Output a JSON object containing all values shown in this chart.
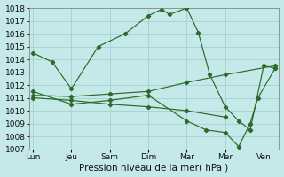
{
  "background_color": "#c5e8e8",
  "grid_color": "#a8d4d4",
  "line_color": "#2a6a2a",
  "xlabel": "Pression niveau de la mer( hPa )",
  "ylim": [
    1007,
    1018
  ],
  "xlim": [
    -0.1,
    6.4
  ],
  "xtick_labels": [
    "Lun",
    "Jeu",
    "Sam",
    "Dim",
    "Mar",
    "Mer",
    "Ven"
  ],
  "xtick_positions": [
    0,
    1,
    2,
    3,
    4,
    5,
    6
  ],
  "series": [
    {
      "x": [
        0,
        0.5,
        1.0,
        1.7,
        2.4,
        3.0,
        3.35,
        3.55,
        4.0,
        4.3,
        4.6,
        5.0,
        5.35,
        5.65,
        6.0,
        6.3
      ],
      "y": [
        1014.5,
        1013.8,
        1011.7,
        1015.0,
        1016.0,
        1017.4,
        1017.9,
        1017.5,
        1018.0,
        1016.1,
        1012.8,
        1010.3,
        1009.2,
        1008.5,
        1013.5,
        1013.3
      ]
    },
    {
      "x": [
        0,
        1,
        2,
        3,
        4,
        5,
        6.3
      ],
      "y": [
        1011.2,
        1011.1,
        1011.3,
        1011.5,
        1012.2,
        1012.8,
        1013.5
      ]
    },
    {
      "x": [
        0,
        1,
        2,
        3,
        4,
        5
      ],
      "y": [
        1011.0,
        1010.8,
        1010.5,
        1010.3,
        1010.0,
        1009.5
      ]
    },
    {
      "x": [
        0,
        1,
        2,
        3,
        4,
        4.5,
        5.0,
        5.35,
        5.65,
        5.85,
        6.3
      ],
      "y": [
        1011.5,
        1010.5,
        1010.8,
        1011.2,
        1009.2,
        1008.5,
        1008.3,
        1007.2,
        1009.0,
        1011.0,
        1013.3
      ]
    }
  ]
}
